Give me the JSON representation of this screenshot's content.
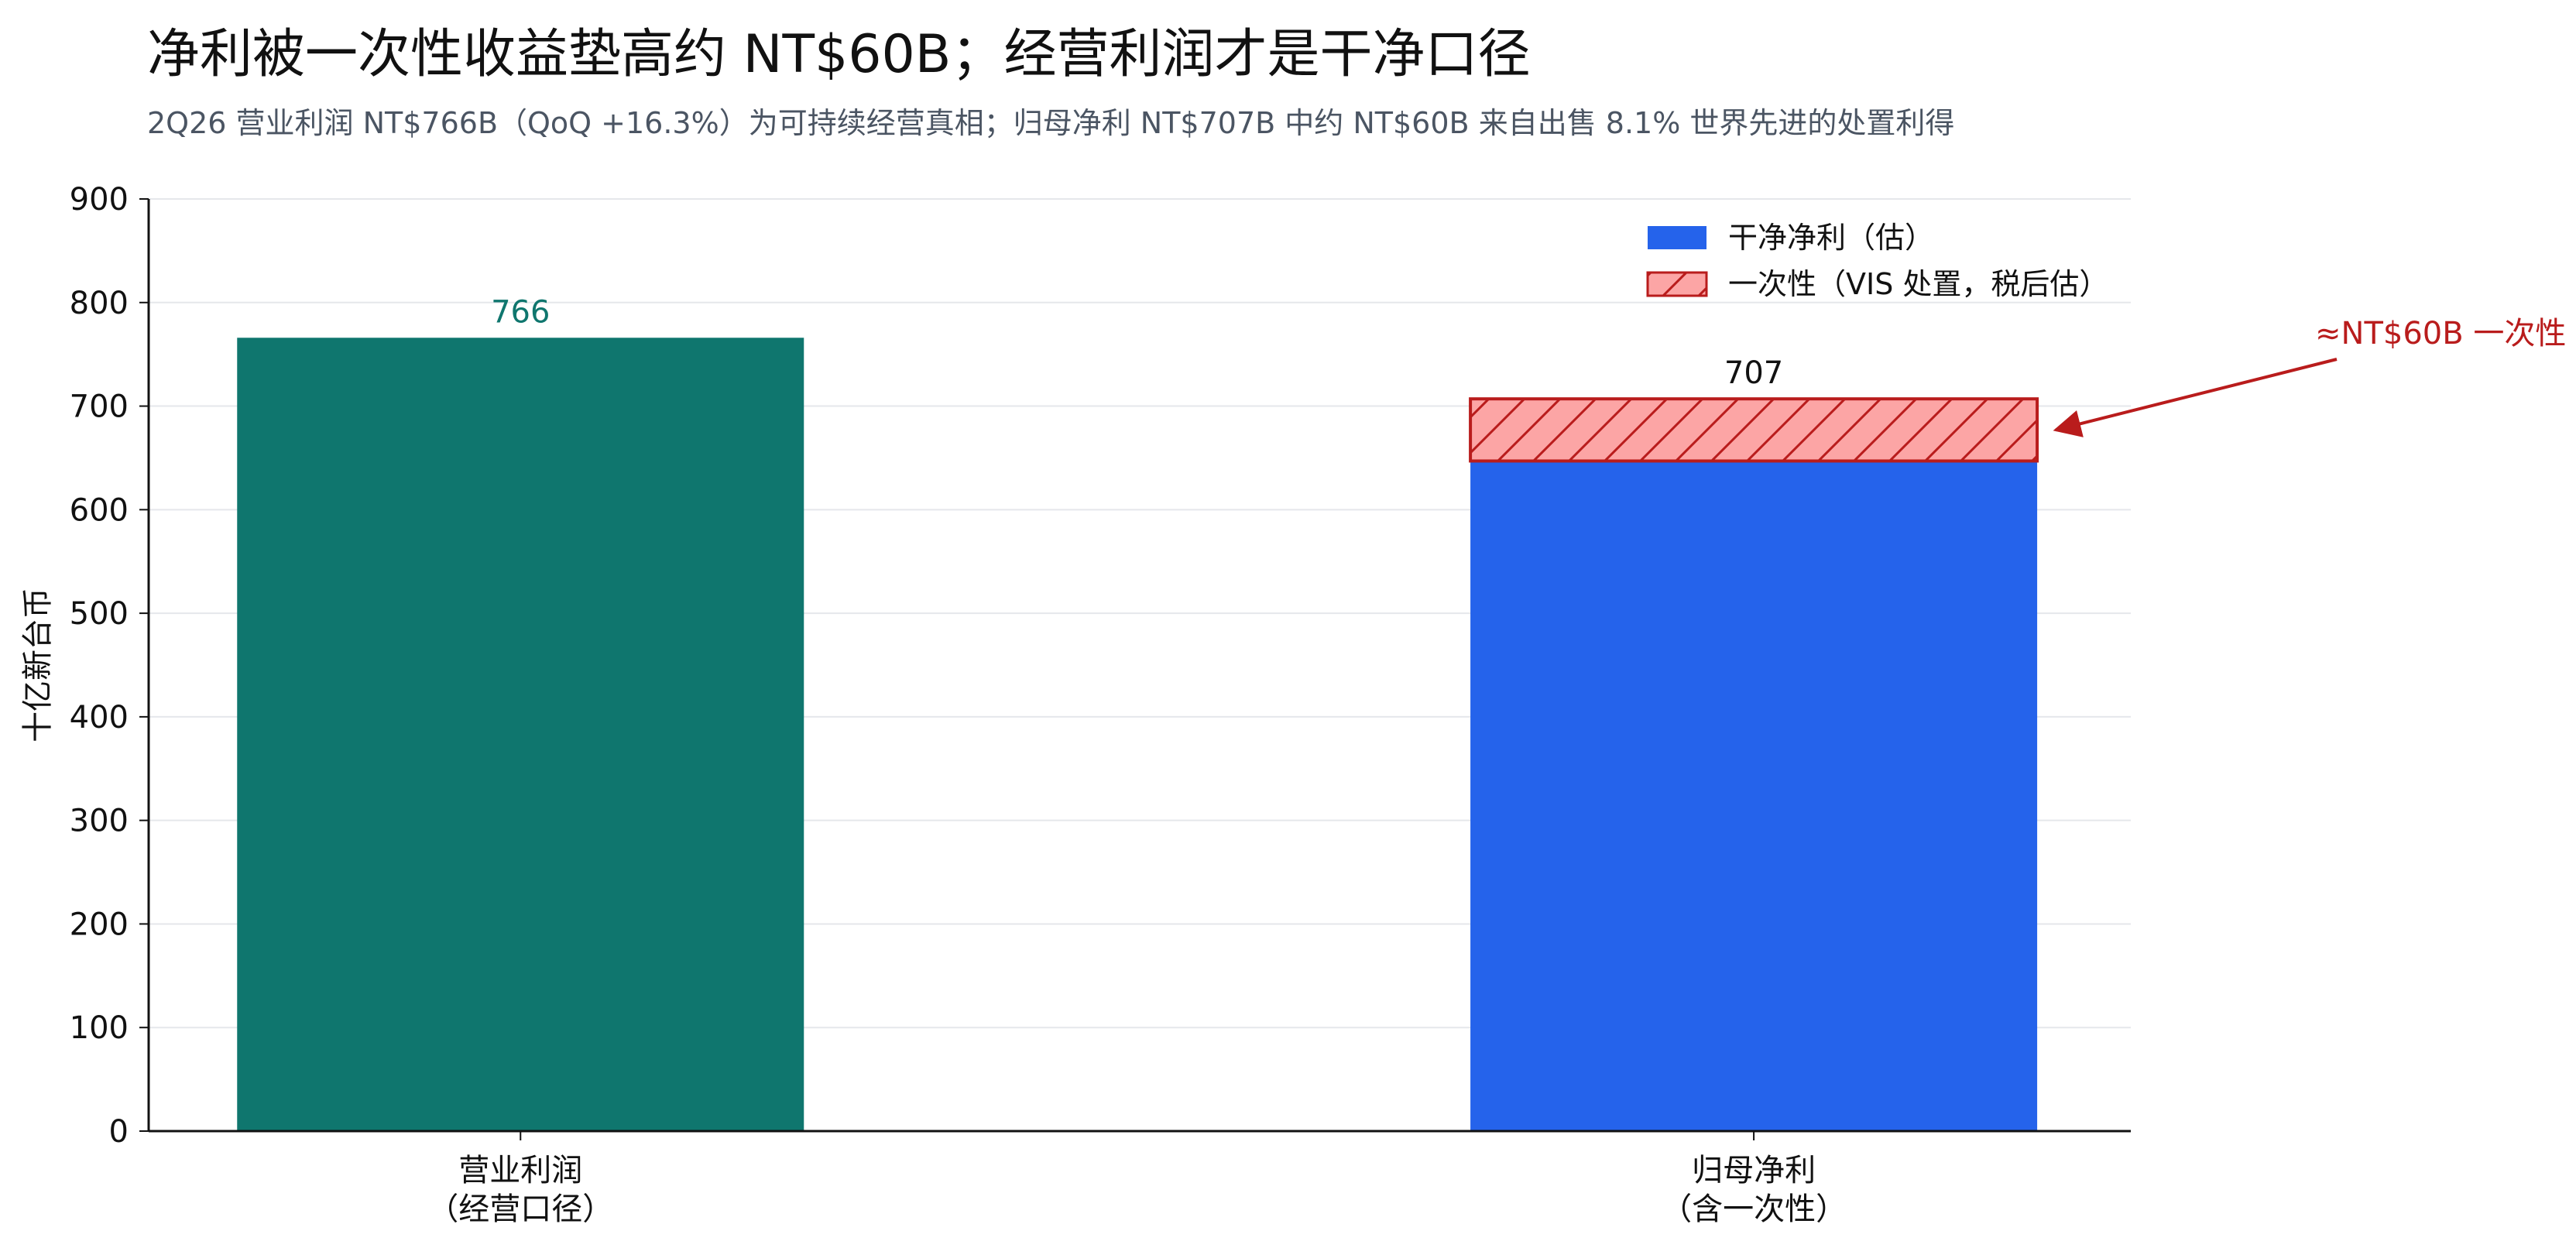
{
  "title": "净利被一次性收益垫高约 NT$60B；经营利润才是干净口径",
  "subtitle": "2Q26 营业利润 NT$766B（QoQ +16.3%）为可持续经营真相；归母净利 NT$707B 中约 NT$60B 来自出售 8.1% 世界先进的处置利得",
  "chart_data": {
    "type": "bar",
    "ylabel": "十亿新台币",
    "ylim": [
      0,
      900
    ],
    "yticks": [
      0,
      100,
      200,
      300,
      400,
      500,
      600,
      700,
      800,
      900
    ],
    "grid": true,
    "legend_position": "top-right",
    "categories": [
      {
        "lines": [
          "营业利润",
          "（经营口径）"
        ]
      },
      {
        "lines": [
          "归母净利",
          "（含一次性）"
        ]
      }
    ],
    "bars": [
      {
        "category_index": 0,
        "segments": [
          {
            "value": 766,
            "color": "#0f766e"
          }
        ],
        "label": "766",
        "label_color": "#0f766e"
      },
      {
        "category_index": 1,
        "segments": [
          {
            "value": 647,
            "color": "#2563eb",
            "series": "干净净利（估）"
          },
          {
            "value": 60,
            "color": "#fca5a5",
            "edge": "#b91c1c",
            "hatch": true,
            "series": "一次性（VIS 处置，税后估）"
          }
        ],
        "label": "707",
        "label_color": "#111111"
      }
    ],
    "legend": [
      {
        "name": "干净净利（估）",
        "color": "#2563eb"
      },
      {
        "name": "一次性（VIS 处置，税后估）",
        "color": "#fca5a5",
        "edge": "#b91c1c",
        "hatch": true
      }
    ],
    "annotation": {
      "text": "≈NT$60B 一次性",
      "color": "#b91c1c",
      "target_bar": 1,
      "target_value": 677
    }
  }
}
